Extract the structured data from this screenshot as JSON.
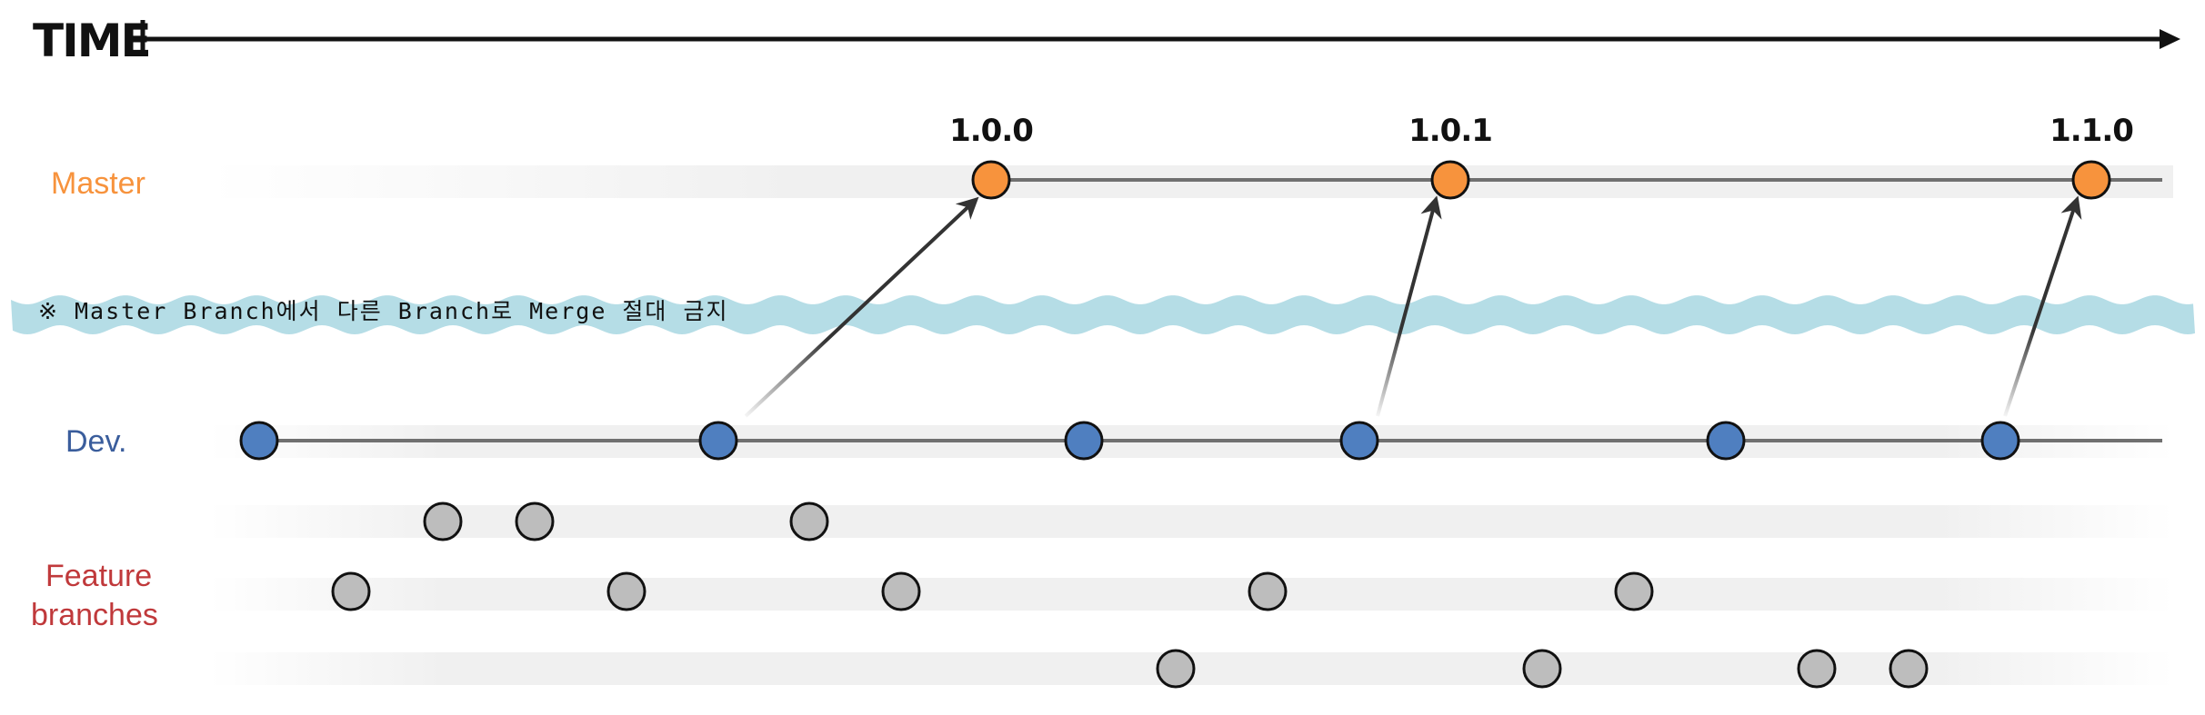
{
  "time_axis": {
    "label": "TIME"
  },
  "lanes": {
    "master": {
      "label": "Master",
      "color": "#f7933d"
    },
    "dev": {
      "label": "Dev.",
      "color": "#3a5d9c"
    },
    "feature": {
      "label_line1": "Feature",
      "label_line2": "branches",
      "color": "#c0393b"
    }
  },
  "versions": [
    "1.0.0",
    "1.0.1",
    "1.1.0"
  ],
  "notice": {
    "text": "※ Master Branch에서 다른 Branch로 Merge 절대 금지",
    "band_color": "#b5dde6"
  },
  "colors": {
    "master_node": "#f7933d",
    "dev_node": "#4f7fc0",
    "feature_node": "#bdbdbd",
    "line": "#707070",
    "arrow": "#333333"
  },
  "commit_counts": {
    "master": 3,
    "dev": 6,
    "feature": [
      3,
      5,
      4
    ]
  },
  "merges": [
    {
      "from_dev_commit": 2,
      "to_version": "1.0.0"
    },
    {
      "from_dev_commit": 4,
      "to_version": "1.0.1"
    },
    {
      "from_dev_commit": 6,
      "to_version": "1.1.0"
    }
  ]
}
